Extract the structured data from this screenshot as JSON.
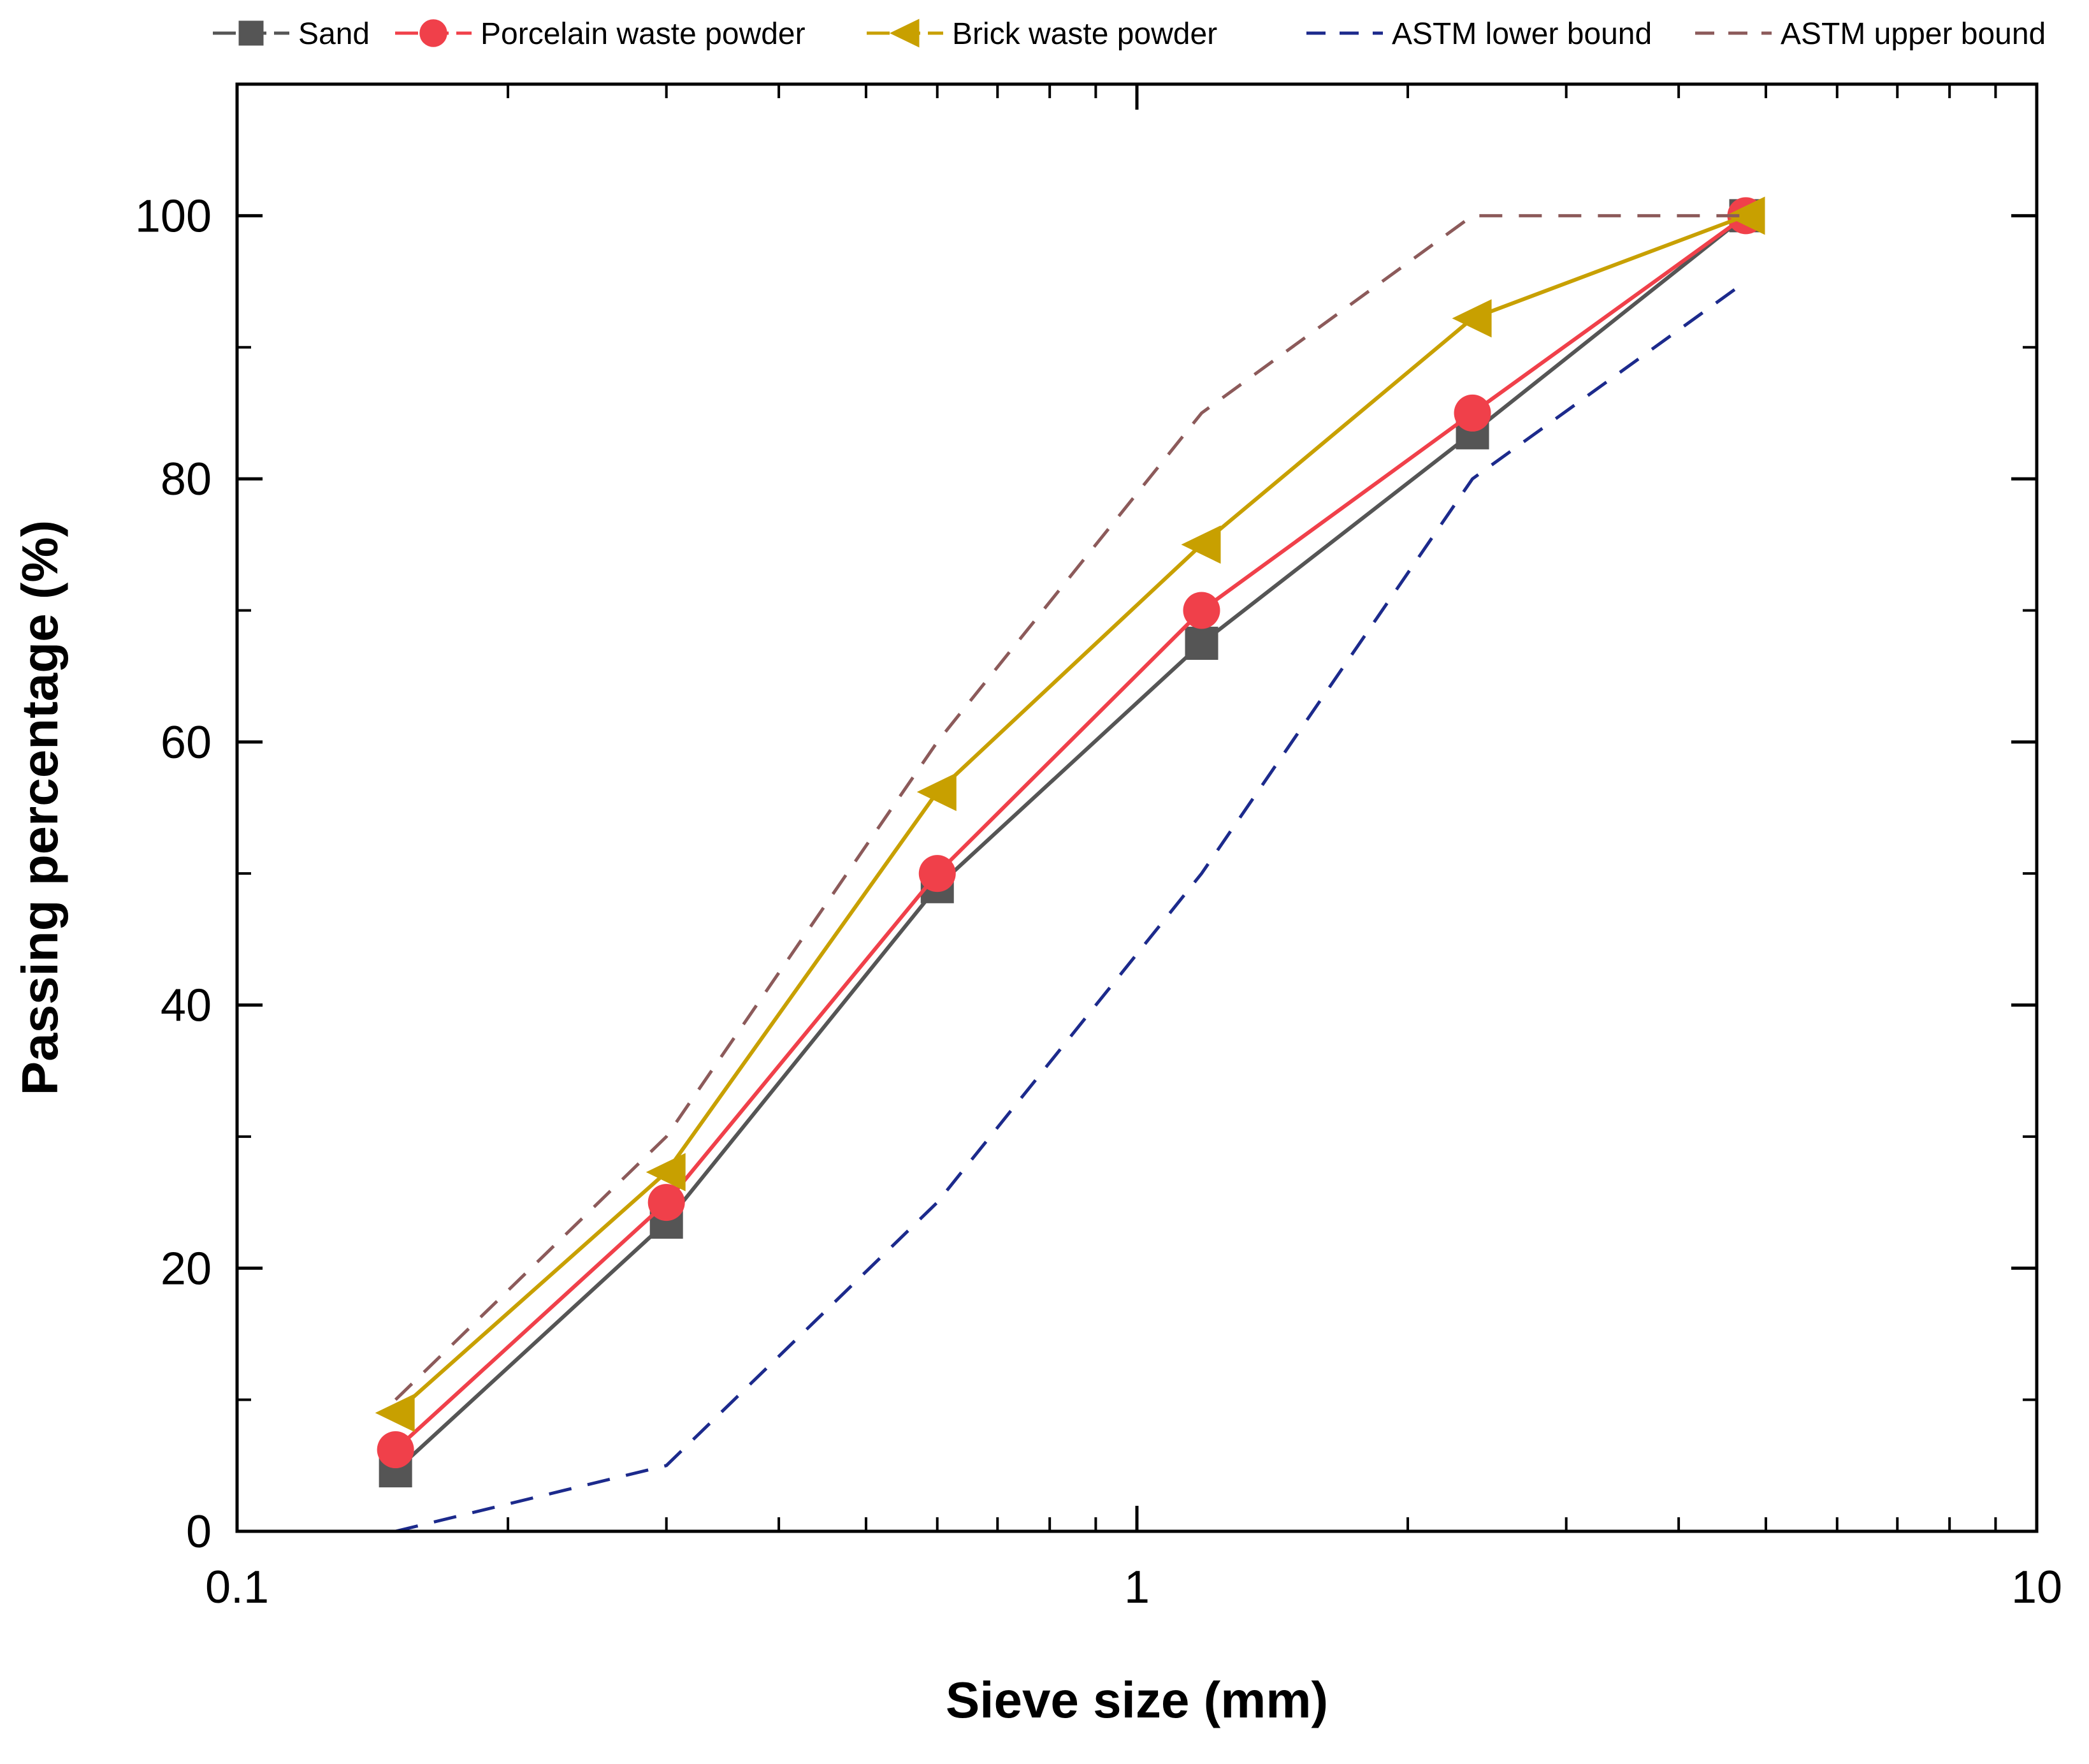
{
  "chart_data": {
    "type": "line",
    "title": "",
    "xlabel": "Sieve size (mm)",
    "ylabel": "Passing percentage (%)",
    "x_scale": "log",
    "xlim": [
      0.1,
      10
    ],
    "ylim": [
      0,
      110
    ],
    "x_ticks": [
      0.1,
      1,
      10
    ],
    "x_tick_labels": [
      "0.1",
      "1",
      "10"
    ],
    "y_ticks": [
      0,
      20,
      40,
      60,
      80,
      100
    ],
    "y_tick_labels": [
      "0",
      "20",
      "40",
      "60",
      "80",
      "100"
    ],
    "grid": false,
    "legend_position": "top",
    "series": [
      {
        "name": "Sand",
        "color": "#555555",
        "line_style": "solid",
        "marker": "square",
        "x": [
          0.15,
          0.3,
          0.6,
          1.18,
          2.36,
          4.75
        ],
        "y": [
          4.6,
          23.5,
          49.0,
          67.5,
          83.5,
          100
        ]
      },
      {
        "name": "Porcelain waste powder",
        "color": "#f0404a",
        "line_style": "solid",
        "marker": "circle",
        "x": [
          0.15,
          0.3,
          0.6,
          1.18,
          2.36,
          4.75
        ],
        "y": [
          6.2,
          25.0,
          50.0,
          70.0,
          85.0,
          100
        ]
      },
      {
        "name": "Brick waste powder",
        "color": "#c8a000",
        "line_style": "solid",
        "marker": "triangle-left",
        "x": [
          0.15,
          0.3,
          0.6,
          1.18,
          2.36,
          4.75
        ],
        "y": [
          9.0,
          27.3,
          56.2,
          75.0,
          92.2,
          100
        ]
      },
      {
        "name": "ASTM lower bound",
        "color": "#1c2a8c",
        "line_style": "dashed",
        "marker": "none",
        "x": [
          0.15,
          0.3,
          0.6,
          1.18,
          2.36,
          4.75
        ],
        "y": [
          0,
          5,
          25,
          50,
          80,
          95
        ]
      },
      {
        "name": "ASTM upper bound",
        "color": "#8c5a5a",
        "line_style": "dashed",
        "marker": "none",
        "x": [
          0.15,
          0.3,
          0.6,
          1.18,
          2.36,
          4.75
        ],
        "y": [
          10,
          30,
          60,
          85,
          100,
          100
        ]
      }
    ]
  }
}
